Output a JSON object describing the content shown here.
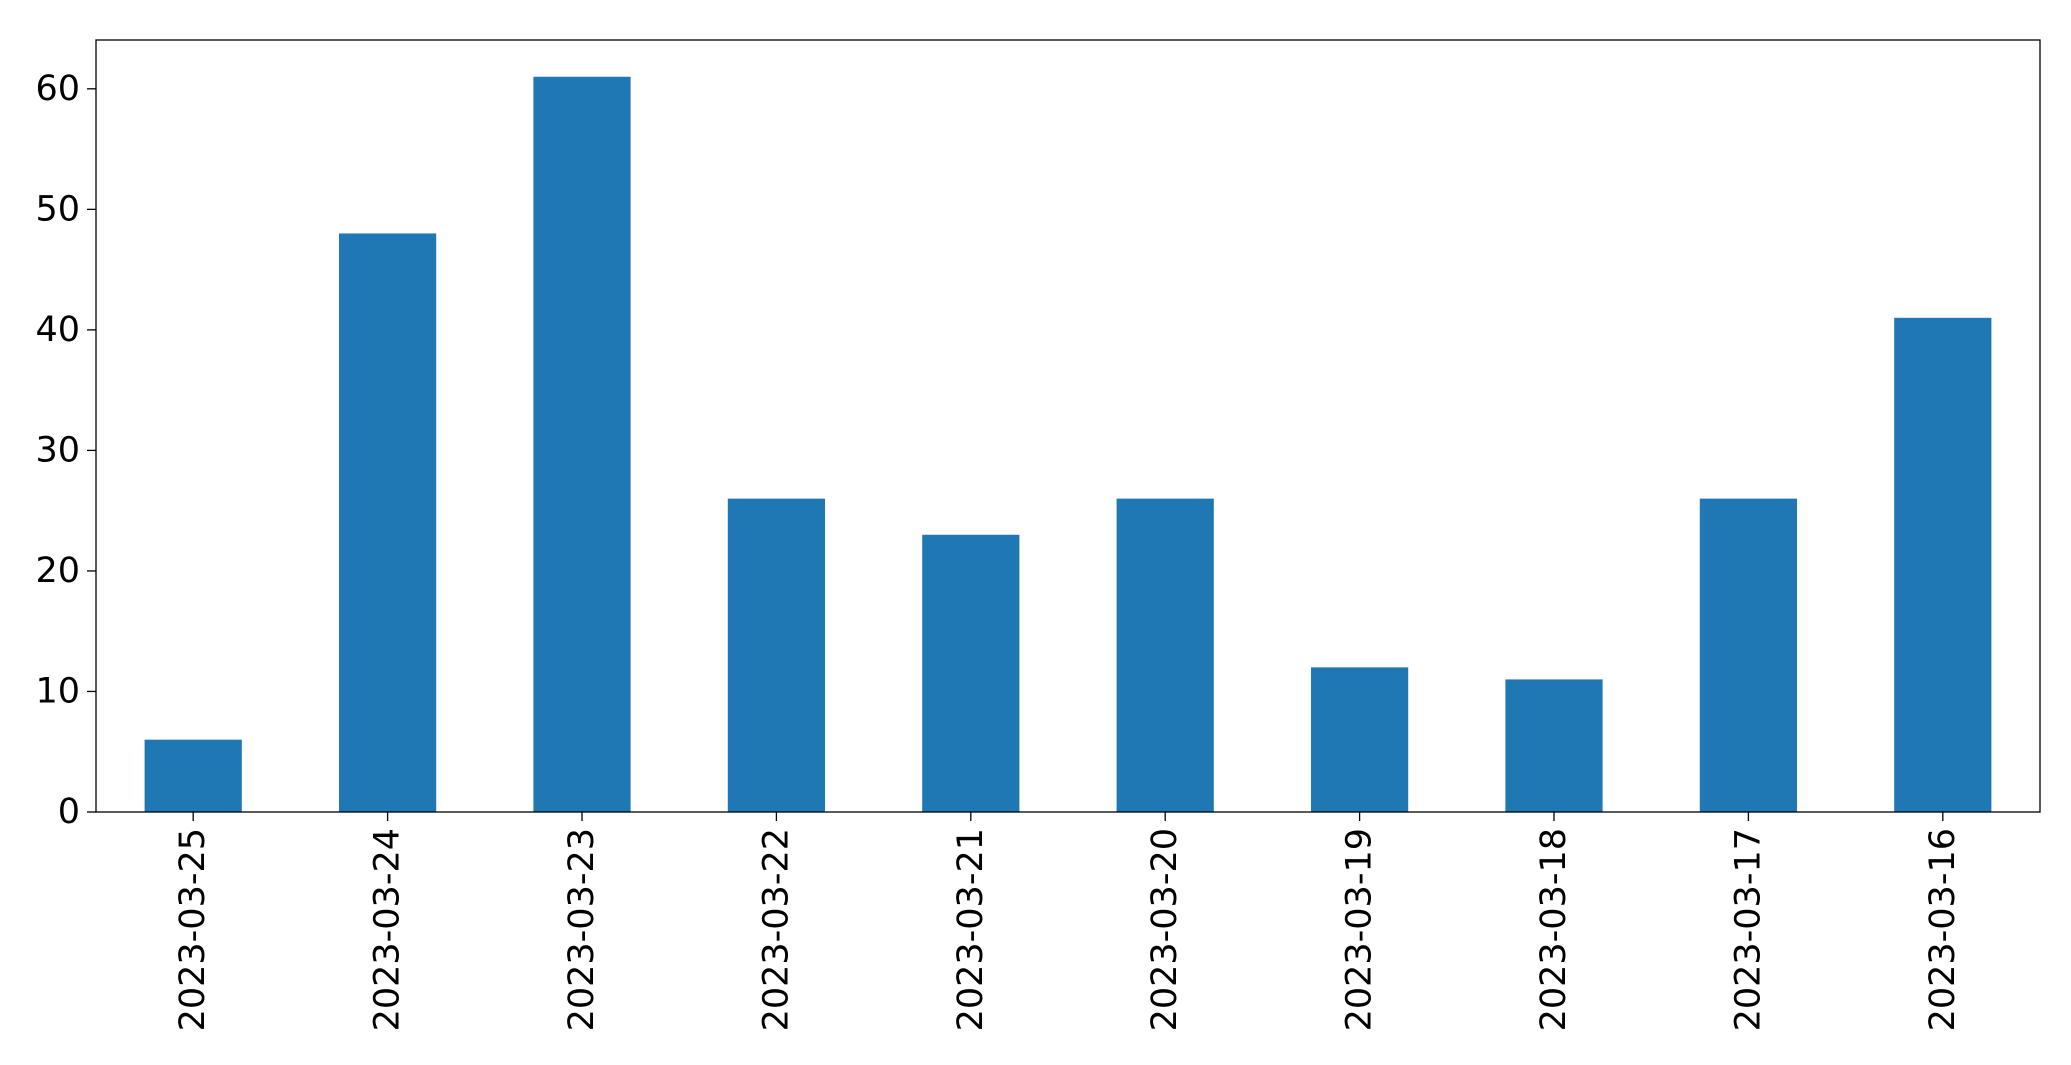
{
  "chart_data": {
    "type": "bar",
    "categories": [
      "2023-03-25",
      "2023-03-24",
      "2023-03-23",
      "2023-03-22",
      "2023-03-21",
      "2023-03-20",
      "2023-03-19",
      "2023-03-18",
      "2023-03-17",
      "2023-03-16"
    ],
    "values": [
      6,
      48,
      61,
      26,
      23,
      26,
      12,
      11,
      26,
      41
    ],
    "color": "#1f77b4",
    "ylim": [
      0,
      64.05
    ],
    "yticks": [
      0,
      10,
      20,
      30,
      40,
      50,
      60
    ],
    "grid": false
  }
}
